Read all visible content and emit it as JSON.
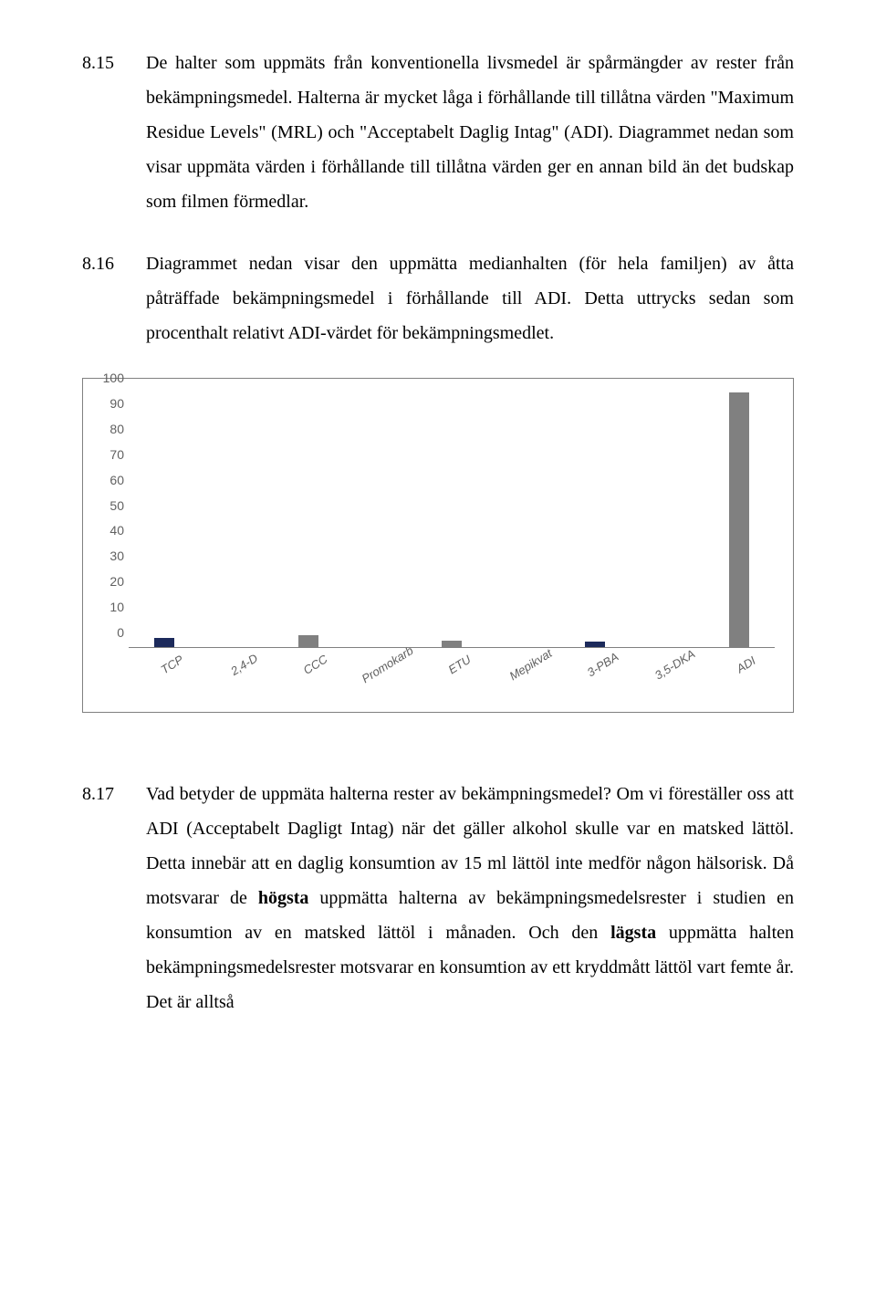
{
  "paragraphs": [
    {
      "num": "8.15",
      "text": "De halter som uppmäts från konventionella livsmedel är spårmängder av rester från bekämpningsmedel. Halterna är mycket låga i förhållande till tillåtna värden \"Maximum Residue Levels\" (MRL) och \"Acceptabelt Daglig Intag\" (ADI). Diagrammet nedan som visar uppmäta värden i förhållande till tillåtna värden ger en annan bild än det budskap som filmen förmedlar."
    },
    {
      "num": "8.16",
      "text": "Diagrammet nedan visar den uppmätta medianhalten (för hela familjen) av åtta påträffade bekämpningsmedel i förhållande till ADI. Detta uttrycks sedan som procenthalt relativt ADI-värdet för bekämpningsmedlet."
    }
  ],
  "chart": {
    "type": "bar",
    "ylim": [
      0,
      100
    ],
    "ytick_step": 10,
    "yticks": [
      0,
      10,
      20,
      30,
      40,
      50,
      60,
      70,
      80,
      90,
      100
    ],
    "categories": [
      "TCP",
      "2,4-D",
      "CCC",
      "Promokarb",
      "ETU",
      "Mepikvat",
      "3-PBA",
      "3,5-DKA",
      "ADI"
    ],
    "values": [
      3.5,
      0,
      4.5,
      0,
      2.5,
      0,
      2,
      0,
      100
    ],
    "bar_colors": [
      "#1c2a5b",
      "#808080",
      "#808080",
      "#808080",
      "#808080",
      "#808080",
      "#1c2a5b",
      "#808080",
      "#808080"
    ],
    "border_color": "#808080",
    "background_color": "#ffffff",
    "axis_font_family": "Arial",
    "axis_font_size": 14,
    "axis_font_color": "#606060",
    "xlabel_rotation": -32,
    "xlabel_font_style": "italic"
  },
  "paragraph817": {
    "num": "8.17",
    "part1": "Vad betyder de uppmäta halterna rester av bekämpningsmedel? Om vi föreställer oss att ADI (Acceptabelt Dagligt Intag) när det gäller alkohol skulle var en matsked lättöl. Detta innebär att en daglig konsumtion av 15 ml lättöl inte medför någon hälsorisk. Då motsvarar de ",
    "bold1": "högsta",
    "part2": " uppmätta halterna av bekämpningsmedelsrester i studien en konsumtion av en matsked lättöl i månaden. Och den ",
    "bold2": "lägsta",
    "part3": " uppmätta halten bekämpningsmedelsrester motsvarar en konsumtion av ett kryddmått lättöl vart femte år. Det är alltså"
  }
}
